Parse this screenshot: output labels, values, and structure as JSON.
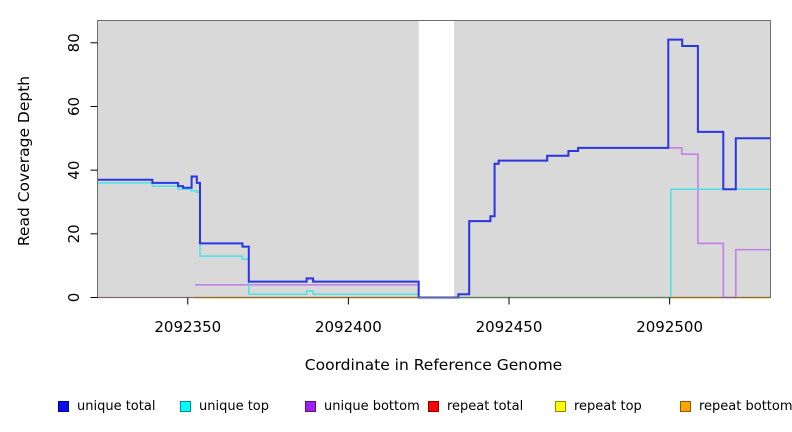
{
  "chart_data": {
    "type": "line",
    "subtype": "step-coverage",
    "title": "",
    "xlabel": "Coordinate in Reference Genome",
    "ylabel": "Read Coverage Depth",
    "xlim": [
      2092321.9,
      2092531.4
    ],
    "ylim": [
      0,
      87
    ],
    "x_ticks": [
      2092350,
      2092400,
      2092450,
      2092500
    ],
    "y_ticks": [
      0,
      20,
      40,
      60,
      80
    ],
    "grid": false,
    "plot_bg": "#D9D9D9",
    "border_color": "#6E6E6E",
    "gap_band": {
      "x0": 2092421.9,
      "x1": 2092432.9,
      "color": "#FFFFFF"
    },
    "legend_position": "bottom",
    "series": [
      {
        "name": "repeat top",
        "color": "#FFE928",
        "width": 1.0,
        "points": [
          [
            2092321.9,
            0
          ],
          [
            2092531.4,
            0
          ]
        ]
      },
      {
        "name": "repeat total",
        "color": "#ED5C86",
        "width": 1.3,
        "points": [
          [
            2092321.9,
            0
          ],
          [
            2092531.4,
            0
          ]
        ]
      },
      {
        "name": "repeat bottom",
        "color": "#FFA41C",
        "width": 1.8,
        "points": [
          [
            2092352.3,
            0
          ],
          [
            2092531.4,
            0
          ]
        ]
      },
      {
        "name": "unique bottom",
        "color": "#C184E8",
        "width": 1.7,
        "points": [
          [
            2092352.3,
            4
          ],
          [
            2092421.9,
            0
          ],
          [
            2092434.2,
            1
          ],
          [
            2092437.6,
            24
          ],
          [
            2092444.2,
            25.5
          ],
          [
            2092445.5,
            42
          ],
          [
            2092446.8,
            43
          ],
          [
            2092461.9,
            44.5
          ],
          [
            2092468.5,
            46
          ],
          [
            2092471.5,
            47
          ],
          [
            2092503.8,
            45
          ],
          [
            2092508.8,
            17
          ],
          [
            2092516.7,
            0
          ],
          [
            2092520.6,
            15
          ],
          [
            2092531.4,
            15
          ]
        ]
      },
      {
        "name": "unique top",
        "color": "#49E3E8",
        "width": 1.5,
        "points": [
          [
            2092321.9,
            36
          ],
          [
            2092339,
            35
          ],
          [
            2092347,
            34
          ],
          [
            2092351,
            33.5
          ],
          [
            2092352.8,
            33
          ],
          [
            2092353.8,
            13
          ],
          [
            2092367,
            12
          ],
          [
            2092369,
            1
          ],
          [
            2092387,
            2
          ],
          [
            2092389,
            1
          ],
          [
            2092421.9,
            0
          ],
          [
            2092500.4,
            34
          ],
          [
            2092531.4,
            34
          ]
        ]
      },
      {
        "name": "unique total",
        "color": "#2A35E4",
        "width": 2.0,
        "points": [
          [
            2092321.9,
            37
          ],
          [
            2092339,
            36
          ],
          [
            2092347,
            35
          ],
          [
            2092348.5,
            34.5
          ],
          [
            2092351.2,
            38
          ],
          [
            2092352.8,
            36
          ],
          [
            2092353.8,
            17
          ],
          [
            2092367,
            16
          ],
          [
            2092369,
            5
          ],
          [
            2092387,
            6
          ],
          [
            2092389,
            5
          ],
          [
            2092421.9,
            0
          ],
          [
            2092434.2,
            1
          ],
          [
            2092437.6,
            24
          ],
          [
            2092444.2,
            25.5
          ],
          [
            2092445.5,
            42
          ],
          [
            2092446.8,
            43
          ],
          [
            2092461.9,
            44.5
          ],
          [
            2092468.5,
            46
          ],
          [
            2092471.5,
            47
          ],
          [
            2092499.6,
            81
          ],
          [
            2092503.9,
            79
          ],
          [
            2092508.8,
            52
          ],
          [
            2092516.7,
            34
          ],
          [
            2092520.6,
            50
          ],
          [
            2092531.4,
            50
          ]
        ]
      }
    ]
  },
  "legend": {
    "items": [
      {
        "label": "unique total",
        "color": "#0A0AEE",
        "x": 58
      },
      {
        "label": "unique top",
        "color": "#00FFFF",
        "x": 180
      },
      {
        "label": "unique bottom",
        "color": "#A020F0",
        "x": 305
      },
      {
        "label": "repeat total",
        "color": "#FF0000",
        "x": 428
      },
      {
        "label": "repeat top",
        "color": "#FFFF00",
        "x": 555
      },
      {
        "label": "repeat bottom",
        "color": "#FFA500",
        "x": 680
      }
    ]
  }
}
